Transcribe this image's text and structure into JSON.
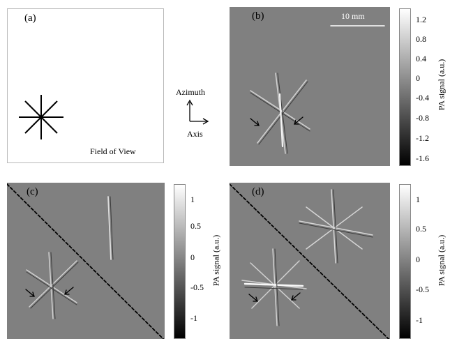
{
  "panels": {
    "a": {
      "label": "(a)",
      "caption": "Field of View"
    },
    "b": {
      "label": "(b)",
      "scale_bar": "10 mm"
    },
    "c": {
      "label": "(c)"
    },
    "d": {
      "label": "(d)"
    }
  },
  "orientation": {
    "vertical": "Azimuth",
    "horizontal": "Axis"
  },
  "colorbar_label": "PA signal (a.u.)",
  "colorbar_b_ticks": [
    "1.2",
    "0.8",
    "0.4",
    "0",
    "-0.4",
    "-0.8",
    "-1.2",
    "-1.6"
  ],
  "colorbar_cd_ticks": [
    "1",
    "0.5",
    "0",
    "-0.5",
    "-1"
  ],
  "colors": {
    "background": "#808080",
    "frame": "#b9b9b9"
  }
}
